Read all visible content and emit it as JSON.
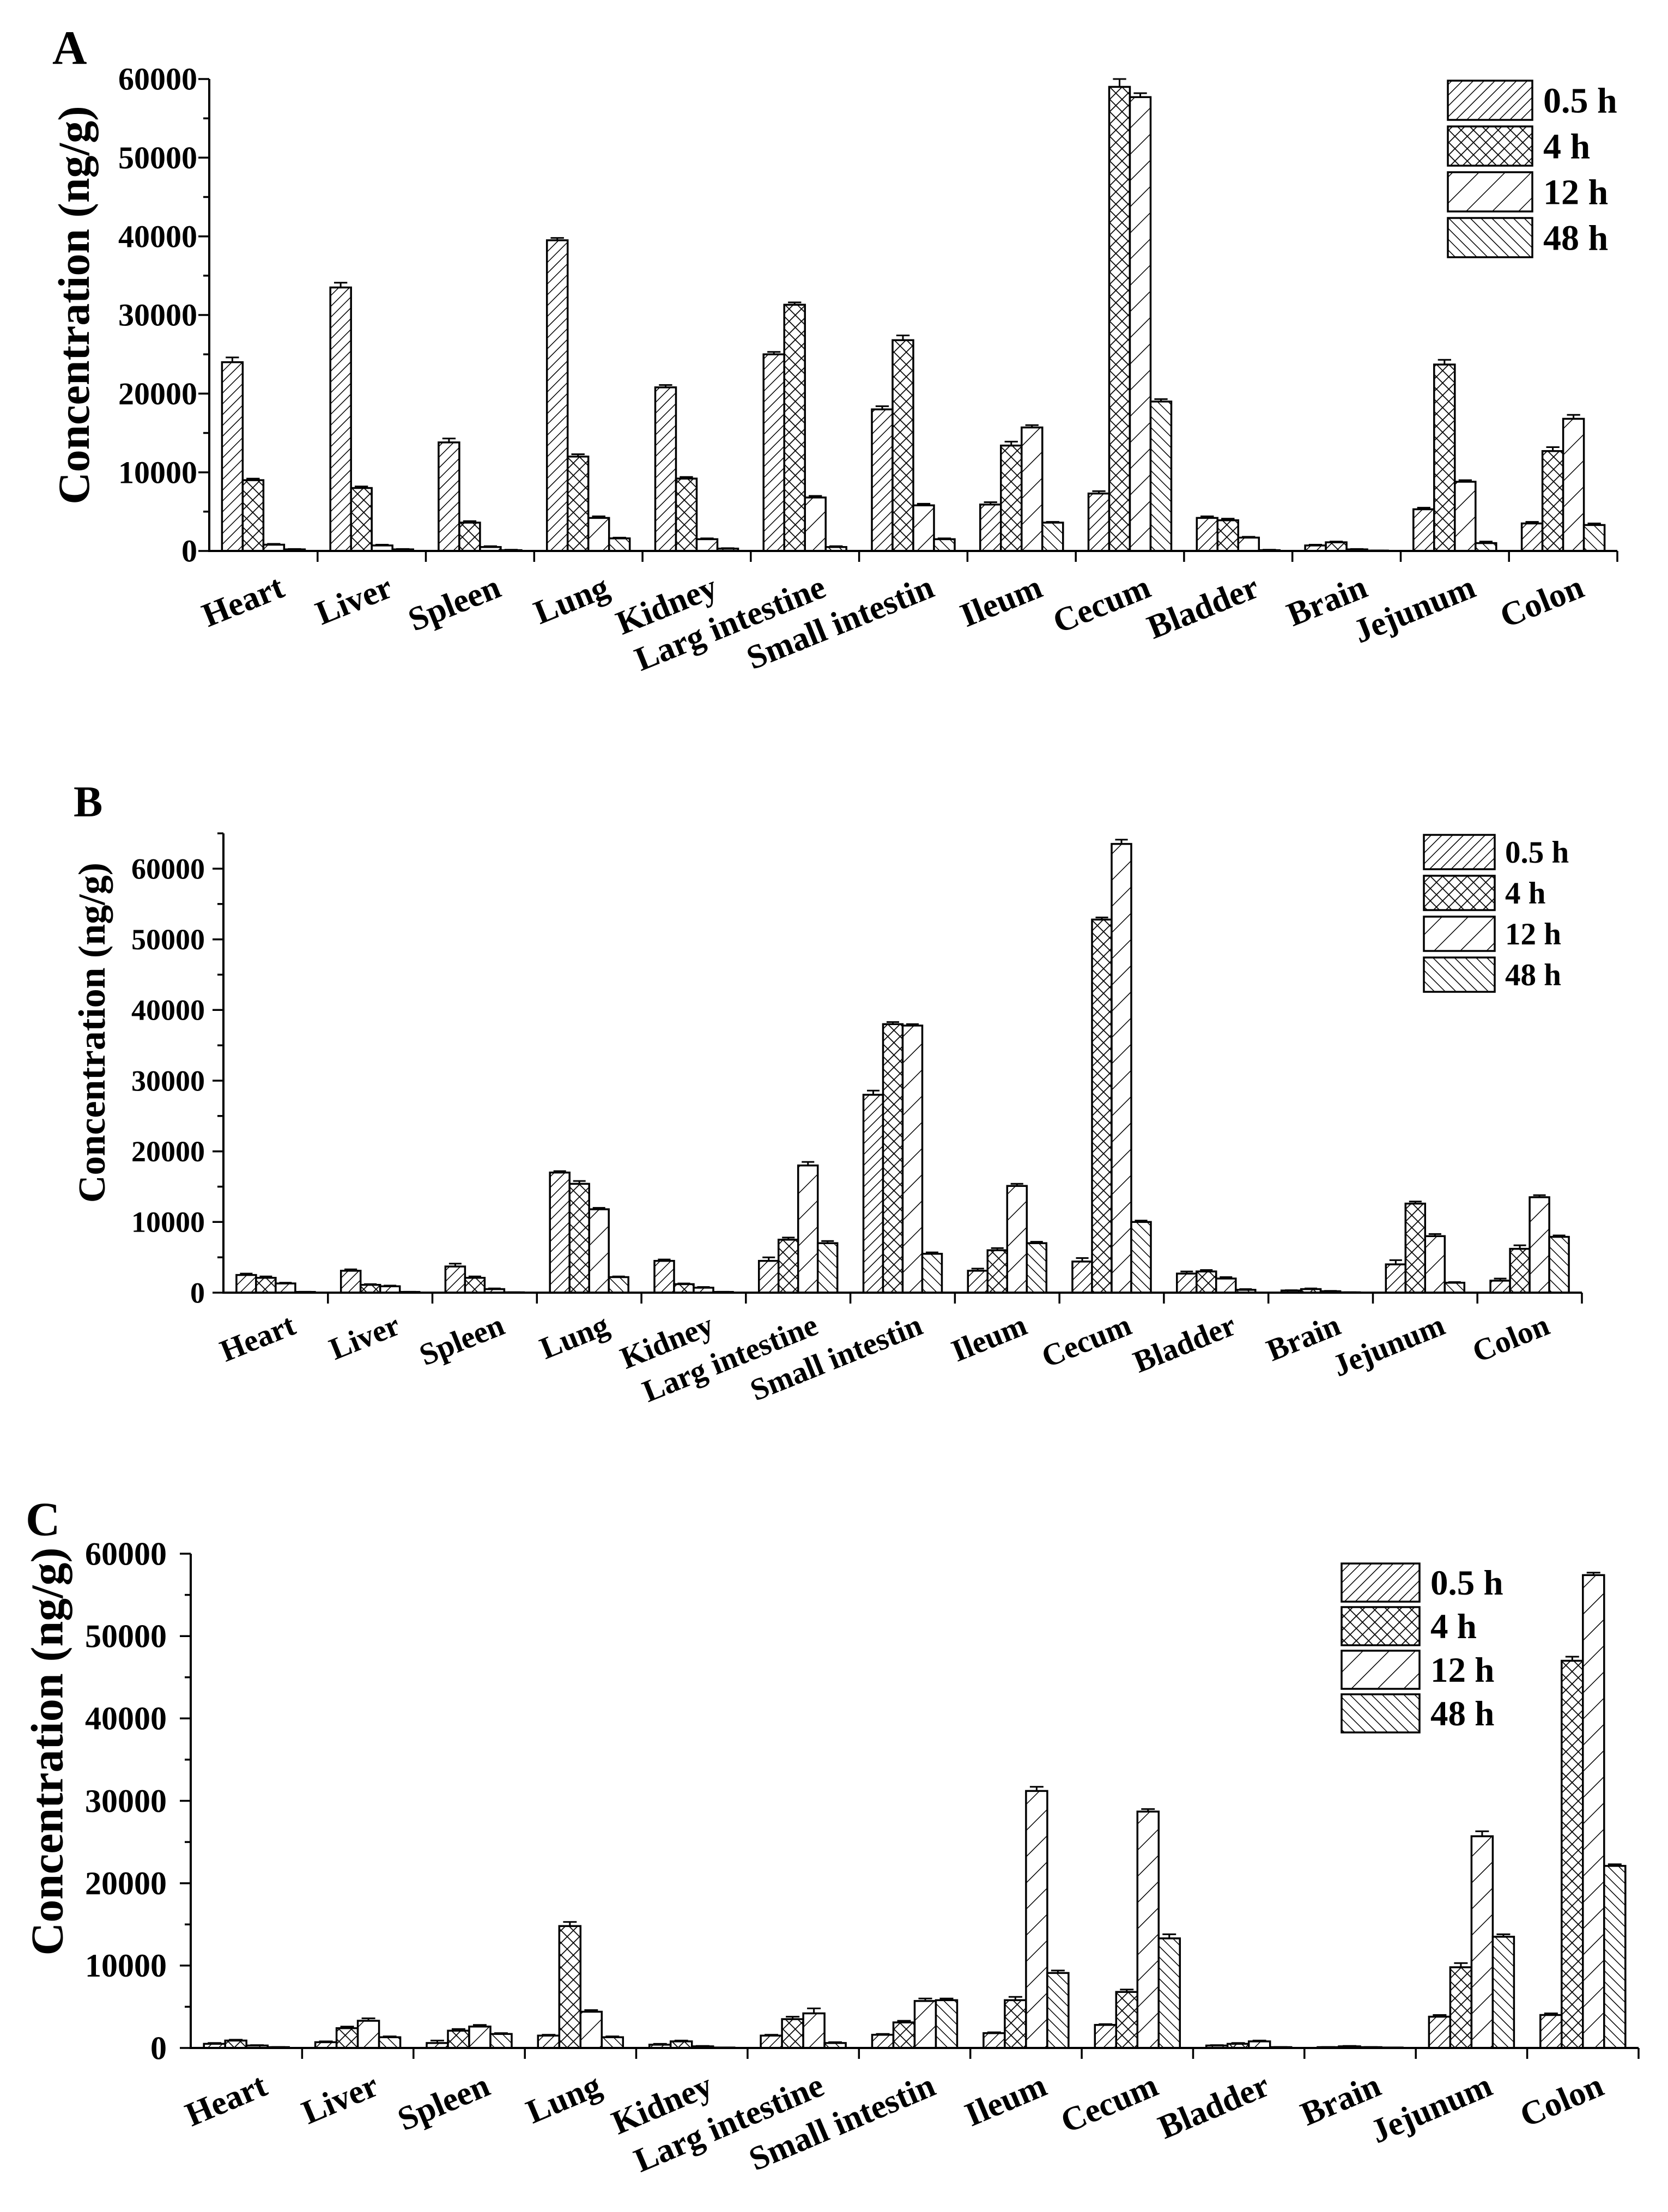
{
  "colors": {
    "ink": "#000000",
    "background": "#ffffff"
  },
  "chart_data": [
    {
      "panel": "A",
      "type": "bar",
      "title": "",
      "xlabel": "",
      "ylabel": "Concentration (ng/g)",
      "ylim": [
        0,
        60000
      ],
      "yticks": [
        "0",
        "10000",
        "20000",
        "30000",
        "40000",
        "50000",
        "60000"
      ],
      "legend_position": "top-right",
      "categories": [
        "Heart",
        "Liver",
        "Spleen",
        "Lung",
        "Kidney",
        "Larg intestine",
        "Small intestin",
        "Ileum",
        "Cecum",
        "Bladder",
        "Brain",
        "Jejunum",
        "Colon"
      ],
      "series": [
        {
          "name": "0.5 h",
          "values": [
            24000,
            33500,
            13800,
            39500,
            20800,
            25000,
            18000,
            5900,
            7300,
            4200,
            700,
            5300,
            3500
          ],
          "errors": [
            600,
            600,
            500,
            300,
            300,
            300,
            400,
            300,
            300,
            200,
            100,
            200,
            200
          ]
        },
        {
          "name": "4 h",
          "values": [
            9000,
            8000,
            3600,
            12000,
            9200,
            31300,
            26800,
            13400,
            59000,
            3900,
            1100,
            23700,
            12700
          ],
          "errors": [
            200,
            200,
            200,
            300,
            200,
            300,
            600,
            500,
            1000,
            200,
            100,
            600,
            500
          ]
        },
        {
          "name": "12 h",
          "values": [
            800,
            700,
            500,
            4200,
            1500,
            6800,
            5800,
            15700,
            57700,
            1700,
            200,
            8800,
            16800
          ],
          "errors": [
            100,
            100,
            100,
            200,
            100,
            200,
            200,
            300,
            500,
            100,
            50,
            200,
            500
          ]
        },
        {
          "name": "48 h",
          "values": [
            200,
            200,
            100,
            1600,
            300,
            500,
            1500,
            3600,
            19000,
            100,
            50,
            1000,
            3300
          ],
          "errors": [
            50,
            50,
            50,
            100,
            50,
            100,
            100,
            100,
            300,
            50,
            20,
            200,
            200
          ]
        }
      ]
    },
    {
      "panel": "B",
      "type": "bar",
      "title": "",
      "xlabel": "",
      "ylabel": "Concentration (ng/g)",
      "ylim": [
        0,
        65000
      ],
      "yticks": [
        "0",
        "10000",
        "20000",
        "30000",
        "40000",
        "50000",
        "60000"
      ],
      "legend_position": "top-right",
      "categories": [
        "Heart",
        "Liver",
        "Spleen",
        "Lung",
        "Kidney",
        "Larg intestine",
        "Small intestin",
        "Ileum",
        "Cecum",
        "Bladder",
        "Brain",
        "Jejunum",
        "Colon"
      ],
      "series": [
        {
          "name": "0.5 h",
          "values": [
            2500,
            3100,
            3700,
            17000,
            4500,
            4500,
            28000,
            3100,
            4400,
            2700,
            300,
            4000,
            1700
          ],
          "errors": [
            200,
            200,
            400,
            200,
            200,
            500,
            600,
            300,
            500,
            300,
            50,
            600,
            300
          ]
        },
        {
          "name": "4 h",
          "values": [
            2100,
            1100,
            2100,
            15400,
            1200,
            7500,
            38000,
            6000,
            52800,
            3000,
            500,
            12600,
            6200
          ],
          "errors": [
            200,
            100,
            200,
            400,
            100,
            300,
            300,
            300,
            300,
            200,
            100,
            300,
            500
          ]
        },
        {
          "name": "12 h",
          "values": [
            1300,
            900,
            500,
            11800,
            700,
            18000,
            37800,
            15100,
            63500,
            2000,
            200,
            8000,
            13500
          ],
          "errors": [
            100,
            100,
            100,
            200,
            100,
            500,
            200,
            300,
            600,
            200,
            50,
            300,
            300
          ]
        },
        {
          "name": "48 h",
          "values": [
            100,
            100,
            50,
            2200,
            100,
            7000,
            5500,
            7000,
            10000,
            400,
            50,
            1400,
            7900
          ],
          "errors": [
            20,
            20,
            10,
            100,
            20,
            300,
            200,
            200,
            200,
            100,
            10,
            100,
            200
          ]
        }
      ]
    },
    {
      "panel": "C",
      "type": "bar",
      "title": "",
      "xlabel": "",
      "ylabel": "Concentration (ng/g)",
      "ylim": [
        0,
        60000
      ],
      "yticks": [
        "0",
        "10000",
        "20000",
        "30000",
        "40000",
        "50000",
        "60000"
      ],
      "legend_position": "top-right",
      "categories": [
        "Heart",
        "Liver",
        "Spleen",
        "Lung",
        "Kidney",
        "Larg intestine",
        "Small intestin",
        "Ileum",
        "Cecum",
        "Bladder",
        "Brain",
        "Jejunum",
        "Colon"
      ],
      "series": [
        {
          "name": "0.5 h",
          "values": [
            500,
            700,
            600,
            1500,
            400,
            1500,
            1600,
            1800,
            2800,
            300,
            100,
            3800,
            4000
          ],
          "errors": [
            100,
            100,
            300,
            100,
            100,
            100,
            100,
            100,
            100,
            50,
            20,
            200,
            200
          ]
        },
        {
          "name": "4 h",
          "values": [
            900,
            2400,
            2100,
            14800,
            800,
            3500,
            3100,
            5800,
            6800,
            500,
            200,
            9800,
            47000
          ],
          "errors": [
            100,
            200,
            200,
            500,
            100,
            300,
            200,
            400,
            300,
            100,
            50,
            500,
            500
          ]
        },
        {
          "name": "12 h",
          "values": [
            300,
            3300,
            2600,
            4400,
            200,
            4200,
            5700,
            31200,
            28700,
            800,
            100,
            25700,
            57400
          ],
          "errors": [
            50,
            300,
            200,
            200,
            50,
            600,
            300,
            500,
            300,
            100,
            20,
            600,
            300
          ]
        },
        {
          "name": "48 h",
          "values": [
            100,
            1300,
            1700,
            1300,
            50,
            600,
            5800,
            9100,
            13300,
            100,
            50,
            13500,
            22100
          ],
          "errors": [
            20,
            100,
            100,
            100,
            10,
            100,
            200,
            300,
            500,
            20,
            10,
            300,
            200
          ]
        }
      ]
    }
  ]
}
